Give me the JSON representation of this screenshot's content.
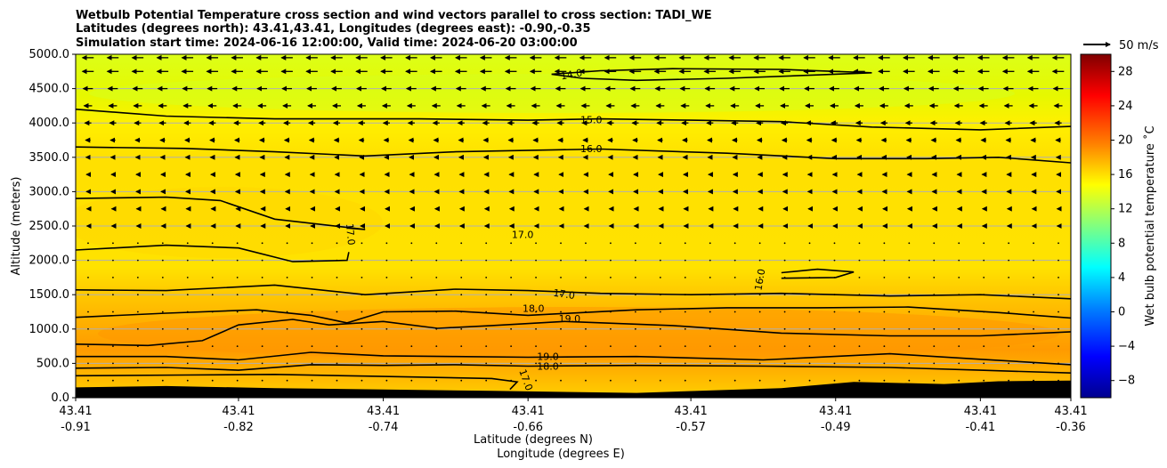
{
  "chart_data": {
    "type": "contour",
    "title_lines": [
      "Wetbulb Potential Temperature cross section and wind vectors parallel to cross section: TADI_WE",
      "Latitudes (degrees north): 43.41,43.41, Longitudes (degrees east): -0.90,-0.35",
      "Simulation start time: 2024-06-16 12:00:00, Valid time: 2024-06-20 03:00:00"
    ],
    "ylabel": "Altitude (meters)",
    "xlabel_lat": "Latitude (degrees N)",
    "xlabel_lon": "Longitude (degrees E)",
    "ylim": [
      0,
      5000
    ],
    "yticks": [
      "0.0",
      "500.0",
      "1000.0",
      "1500.0",
      "2000.0",
      "2500.0",
      "3000.0",
      "3500.0",
      "4000.0",
      "4500.0",
      "5000.0"
    ],
    "xlim": [
      -0.91,
      -0.36
    ],
    "xticks": [
      {
        "lon": -0.91,
        "lat_label": "43.41",
        "lon_label": "-0.91"
      },
      {
        "lon": -0.82,
        "lat_label": "43.41",
        "lon_label": "-0.82"
      },
      {
        "lon": -0.74,
        "lat_label": "43.41",
        "lon_label": "-0.74"
      },
      {
        "lon": -0.66,
        "lat_label": "43.41",
        "lon_label": "-0.66"
      },
      {
        "lon": -0.57,
        "lat_label": "43.41",
        "lon_label": "-0.57"
      },
      {
        "lon": -0.49,
        "lat_label": "43.41",
        "lon_label": "-0.49"
      },
      {
        "lon": -0.41,
        "lat_label": "43.41",
        "lon_label": "-0.41"
      },
      {
        "lon": -0.36,
        "lat_label": "43.41",
        "lon_label": "-0.36"
      }
    ],
    "colorbar": {
      "label": "Wet bulb potential temperature ˚C",
      "range": [
        -10,
        30
      ],
      "ticks": [
        "−8",
        "−4",
        "0",
        "4",
        "8",
        "12",
        "16",
        "20",
        "24",
        "28"
      ]
    },
    "quiver_key": "50 m/s",
    "contour_lines": [
      {
        "level": "14.0",
        "points": [
          [
            -0.647,
            4710
          ],
          [
            -0.62,
            4760
          ],
          [
            -0.58,
            4790
          ],
          [
            -0.52,
            4780
          ],
          [
            -0.47,
            4730
          ],
          [
            -0.5,
            4700
          ],
          [
            -0.55,
            4650
          ],
          [
            -0.6,
            4620
          ],
          [
            -0.63,
            4650
          ],
          [
            -0.647,
            4710
          ]
        ]
      },
      {
        "level": "15.0",
        "points": [
          [
            -0.91,
            4200
          ],
          [
            -0.86,
            4100
          ],
          [
            -0.8,
            4060
          ],
          [
            -0.72,
            4060
          ],
          [
            -0.66,
            4040
          ],
          [
            -0.62,
            4060
          ],
          [
            -0.57,
            4040
          ],
          [
            -0.52,
            4020
          ],
          [
            -0.47,
            3940
          ],
          [
            -0.41,
            3900
          ],
          [
            -0.36,
            3950
          ]
        ]
      },
      {
        "level": "16.0",
        "points": [
          [
            -0.91,
            3650
          ],
          [
            -0.85,
            3630
          ],
          [
            -0.8,
            3580
          ],
          [
            -0.75,
            3520
          ],
          [
            -0.7,
            3580
          ],
          [
            -0.62,
            3620
          ],
          [
            -0.55,
            3560
          ],
          [
            -0.49,
            3480
          ],
          [
            -0.44,
            3480
          ],
          [
            -0.4,
            3500
          ],
          [
            -0.36,
            3420
          ]
        ]
      },
      {
        "level": "17.0",
        "points": [
          [
            -0.91,
            2900
          ],
          [
            -0.86,
            2920
          ],
          [
            -0.83,
            2870
          ],
          [
            -0.8,
            2600
          ],
          [
            -0.75,
            2450
          ],
          [
            -0.76,
            2470
          ]
        ]
      },
      {
        "level": "17.0",
        "points": [
          [
            -0.91,
            2150
          ],
          [
            -0.86,
            2220
          ],
          [
            -0.82,
            2180
          ],
          [
            -0.79,
            1980
          ],
          [
            -0.76,
            2000
          ],
          [
            -0.759,
            2120
          ]
        ]
      },
      {
        "level": "16.0",
        "points": [
          [
            -0.52,
            1820
          ],
          [
            -0.5,
            1870
          ],
          [
            -0.48,
            1830
          ],
          [
            -0.49,
            1750
          ],
          [
            -0.52,
            1740
          ]
        ]
      },
      {
        "level": "17.0",
        "points": [
          [
            -0.91,
            1570
          ],
          [
            -0.86,
            1560
          ],
          [
            -0.8,
            1640
          ],
          [
            -0.75,
            1500
          ],
          [
            -0.7,
            1580
          ],
          [
            -0.66,
            1560
          ],
          [
            -0.62,
            1520
          ],
          [
            -0.57,
            1500
          ],
          [
            -0.52,
            1520
          ],
          [
            -0.46,
            1480
          ],
          [
            -0.41,
            1500
          ],
          [
            -0.36,
            1440
          ]
        ]
      },
      {
        "level": "18.0",
        "points": [
          [
            -0.91,
            1170
          ],
          [
            -0.86,
            1230
          ],
          [
            -0.81,
            1280
          ],
          [
            -0.78,
            1200
          ],
          [
            -0.76,
            1090
          ],
          [
            -0.74,
            1250
          ],
          [
            -0.7,
            1260
          ],
          [
            -0.66,
            1200
          ],
          [
            -0.6,
            1280
          ],
          [
            -0.55,
            1310
          ],
          [
            -0.5,
            1310
          ],
          [
            -0.45,
            1320
          ],
          [
            -0.4,
            1240
          ],
          [
            -0.36,
            1160
          ]
        ]
      },
      {
        "level": "19.0",
        "points": [
          [
            -0.91,
            780
          ],
          [
            -0.87,
            760
          ],
          [
            -0.84,
            830
          ],
          [
            -0.82,
            1060
          ],
          [
            -0.79,
            1140
          ],
          [
            -0.77,
            1060
          ],
          [
            -0.74,
            1110
          ],
          [
            -0.71,
            1010
          ],
          [
            -0.68,
            1050
          ],
          [
            -0.64,
            1110
          ],
          [
            -0.58,
            1050
          ],
          [
            -0.52,
            940
          ],
          [
            -0.46,
            900
          ],
          [
            -0.41,
            900
          ],
          [
            -0.36,
            960
          ]
        ]
      },
      {
        "level": "19.0",
        "points": [
          [
            -0.91,
            600
          ],
          [
            -0.86,
            600
          ],
          [
            -0.82,
            550
          ],
          [
            -0.78,
            660
          ],
          [
            -0.74,
            610
          ],
          [
            -0.7,
            600
          ],
          [
            -0.66,
            590
          ],
          [
            -0.6,
            600
          ],
          [
            -0.53,
            550
          ],
          [
            -0.46,
            640
          ],
          [
            -0.41,
            560
          ],
          [
            -0.36,
            480
          ]
        ]
      },
      {
        "level": "18.0",
        "points": [
          [
            -0.91,
            430
          ],
          [
            -0.86,
            440
          ],
          [
            -0.82,
            400
          ],
          [
            -0.78,
            480
          ],
          [
            -0.74,
            470
          ],
          [
            -0.7,
            480
          ],
          [
            -0.66,
            460
          ],
          [
            -0.6,
            470
          ],
          [
            -0.53,
            460
          ],
          [
            -0.46,
            440
          ],
          [
            -0.41,
            400
          ],
          [
            -0.36,
            360
          ]
        ]
      },
      {
        "level": "17.0",
        "points": [
          [
            -0.91,
            320
          ],
          [
            -0.85,
            330
          ],
          [
            -0.8,
            340
          ],
          [
            -0.74,
            310
          ],
          [
            -0.68,
            280
          ],
          [
            -0.666,
            230
          ],
          [
            -0.67,
            120
          ]
        ]
      }
    ],
    "contour_labels": [
      {
        "text": "14.0",
        "lon": -0.636,
        "alt": 4710,
        "rot": -10
      },
      {
        "text": "15.0",
        "lon": -0.625,
        "alt": 4050,
        "rot": 0
      },
      {
        "text": "16.0",
        "lon": -0.625,
        "alt": 3630,
        "rot": 0
      },
      {
        "text": "17.0",
        "lon": -0.758,
        "alt": 2380,
        "rot": 85
      },
      {
        "text": "17.0",
        "lon": -0.663,
        "alt": 2380,
        "rot": 0
      },
      {
        "text": "16.0",
        "lon": -0.532,
        "alt": 1720,
        "rot": -80
      },
      {
        "text": "17.0",
        "lon": -0.64,
        "alt": 1510,
        "rot": 8
      },
      {
        "text": "18.0",
        "lon": -0.657,
        "alt": 1300,
        "rot": 0
      },
      {
        "text": "19.0",
        "lon": -0.637,
        "alt": 1150,
        "rot": 0
      },
      {
        "text": "19.0",
        "lon": -0.649,
        "alt": 600,
        "rot": 0
      },
      {
        "text": "18.0",
        "lon": -0.649,
        "alt": 460,
        "rot": 0
      },
      {
        "text": "17.0",
        "lon": -0.661,
        "alt": 260,
        "rot": 70
      }
    ],
    "terrain": [
      [
        -0.91,
        150
      ],
      [
        -0.86,
        170
      ],
      [
        -0.8,
        140
      ],
      [
        -0.74,
        120
      ],
      [
        -0.68,
        100
      ],
      [
        -0.6,
        70
      ],
      [
        -0.52,
        140
      ],
      [
        -0.48,
        230
      ],
      [
        -0.43,
        200
      ],
      [
        -0.4,
        240
      ],
      [
        -0.36,
        250
      ]
    ],
    "wind_rows": [
      {
        "alt": 4950,
        "u": -14
      },
      {
        "alt": 4750,
        "u": -14
      },
      {
        "alt": 4500,
        "u": -12
      },
      {
        "alt": 4250,
        "u": -10
      },
      {
        "alt": 4000,
        "u": -8
      },
      {
        "alt": 3750,
        "u": -6
      },
      {
        "alt": 3500,
        "u": -5
      },
      {
        "alt": 3250,
        "u": -4
      },
      {
        "alt": 3000,
        "u": -4
      },
      {
        "alt": 2750,
        "u": -3
      },
      {
        "alt": 2500,
        "u": -3
      },
      {
        "alt": 2250,
        "u": -2
      },
      {
        "alt": 2000,
        "u": -2
      },
      {
        "alt": 1750,
        "u": -1.5
      },
      {
        "alt": 1500,
        "u": -1
      },
      {
        "alt": 1250,
        "u": -0.5
      },
      {
        "alt": 1000,
        "u": -0.3
      },
      {
        "alt": 750,
        "u": -0.2
      },
      {
        "alt": 500,
        "u": -0.2
      },
      {
        "alt": 250,
        "u": -0.2
      }
    ]
  }
}
